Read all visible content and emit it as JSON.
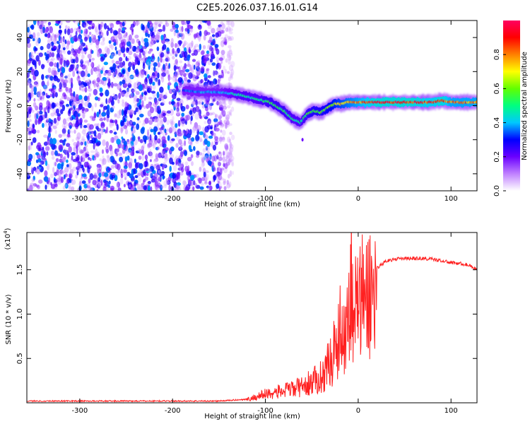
{
  "title": "C2E5.2026.037.16.01.G14",
  "chart_data": [
    {
      "type": "heatmap",
      "xlabel": "Height of straight line (km)",
      "ylabel": "Frequency (Hz)",
      "xlim": [
        -357,
        128
      ],
      "ylim": [
        -50,
        50
      ],
      "xticks": [
        -300,
        -200,
        -100,
        0,
        100
      ],
      "yticks": [
        -40,
        -20,
        0,
        20,
        40
      ],
      "colorbar": {
        "label": "Normalized spectral amplitude",
        "range": [
          0,
          1
        ],
        "ticks": [
          "0.0",
          "0.2",
          "0.4",
          "0.6",
          "0.8"
        ],
        "colors": [
          "#ffffff",
          "#c080ff",
          "#6a00ff",
          "#0000ff",
          "#00c8ff",
          "#00ff80",
          "#60ff00",
          "#ffff00",
          "#ff8000",
          "#ff0000",
          "#ff0060"
        ]
      },
      "noise_region_x": [
        -357,
        -135
      ],
      "ridge": {
        "x": [
          -188,
          -170,
          -150,
          -135,
          -125,
          -110,
          -95,
          -80,
          -70,
          -62,
          -55,
          -48,
          -40,
          -32,
          -25,
          -18,
          -10,
          0,
          20,
          40,
          60,
          80,
          90,
          100,
          128
        ],
        "y": [
          9,
          8,
          8,
          7,
          6,
          4,
          2,
          -3,
          -8,
          -10,
          -5,
          -3,
          -4,
          -1,
          1,
          1,
          2,
          2,
          2,
          2,
          2,
          2,
          3,
          2,
          2
        ],
        "peak_amplitude": [
          0.35,
          0.4,
          0.4,
          0.45,
          0.5,
          0.5,
          0.55,
          0.55,
          0.5,
          0.5,
          0.55,
          0.6,
          0.6,
          0.65,
          0.7,
          0.75,
          0.8,
          0.85,
          0.95,
          0.95,
          0.95,
          0.9,
          0.95,
          0.85,
          0.85
        ]
      },
      "outliers": [
        {
          "x": -60,
          "y": -20
        }
      ]
    },
    {
      "type": "line",
      "xlabel": "Height of straight line (km)",
      "ylabel": "SNR (10 * v/v)",
      "y_multiplier": "(x10",
      "y_multiplier_exp": "4",
      "y_multiplier_close": ")",
      "xlim": [
        -357,
        128
      ],
      "ylim": [
        0,
        1.92
      ],
      "xticks": [
        -300,
        -200,
        -100,
        0,
        100
      ],
      "yticks": [
        "0.5",
        "1.0",
        "1.5"
      ],
      "ytick_values": [
        0.5,
        1.0,
        1.5
      ],
      "color": "#ff2020",
      "series": [
        {
          "x": [
            -357,
            -300,
            -250,
            -200,
            -150,
            -120,
            -100,
            -80,
            -60,
            -50,
            -40,
            -30,
            -25,
            -20,
            -15,
            -10,
            -7,
            -5,
            0,
            10,
            20,
            30,
            40,
            60,
            80,
            100,
            110,
            120,
            128
          ],
          "y": [
            0.02,
            0.02,
            0.02,
            0.02,
            0.02,
            0.04,
            0.12,
            0.16,
            0.22,
            0.28,
            0.35,
            0.55,
            0.75,
            0.95,
            1.05,
            1.2,
            1.9,
            1.25,
            1.35,
            1.45,
            1.52,
            1.6,
            1.62,
            1.63,
            1.62,
            1.58,
            1.57,
            1.55,
            1.5
          ]
        }
      ]
    }
  ]
}
